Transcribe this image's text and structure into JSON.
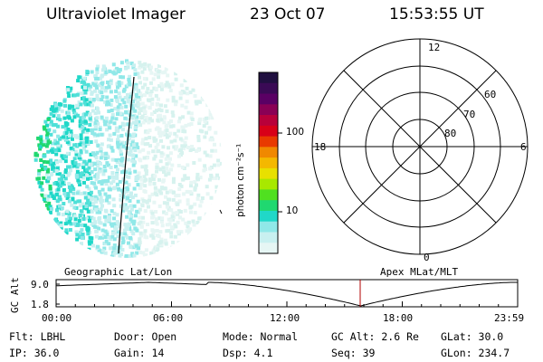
{
  "header": {
    "instrument": "Ultraviolet Imager",
    "date": "23 Oct 07",
    "time": "15:53:55 UT"
  },
  "colorbar": {
    "label": "photon cm⁻²s⁻¹",
    "ticks": [
      "100",
      "10"
    ],
    "colors": [
      "#201040",
      "#3a0a55",
      "#5a0064",
      "#8a0055",
      "#b8003a",
      "#d80018",
      "#e83a00",
      "#f08800",
      "#f4b800",
      "#e8e000",
      "#a8e800",
      "#50e020",
      "#20d870",
      "#20d8c8",
      "#90e8e8",
      "#c8f0f0",
      "#e6f6f4"
    ]
  },
  "labels": {
    "geographic": "Geographic Lat/Lon",
    "apex": "Apex MLat/MLT"
  },
  "polar": {
    "mlt_labels": [
      "12",
      "18",
      "6",
      "0"
    ],
    "lat_labels": [
      "60",
      "70",
      "80"
    ]
  },
  "timeline": {
    "ylabel": "GC Alt",
    "yticks": [
      "9.0",
      "1.8"
    ],
    "xticks": [
      "00:00",
      "06:00",
      "12:00",
      "18:00",
      "23:59"
    ]
  },
  "info": {
    "flt": "Flt: LBHL",
    "ip": "IP: 36.0",
    "door": "Door: Open",
    "gain": "Gain: 14",
    "mode": "Mode: Normal",
    "dsp": "Dsp:    4.1",
    "gcalt": "GC Alt: 2.6 Re",
    "seq": "Seq: 39",
    "glat": "GLat:  30.0",
    "glon": "GLon: 234.7"
  }
}
